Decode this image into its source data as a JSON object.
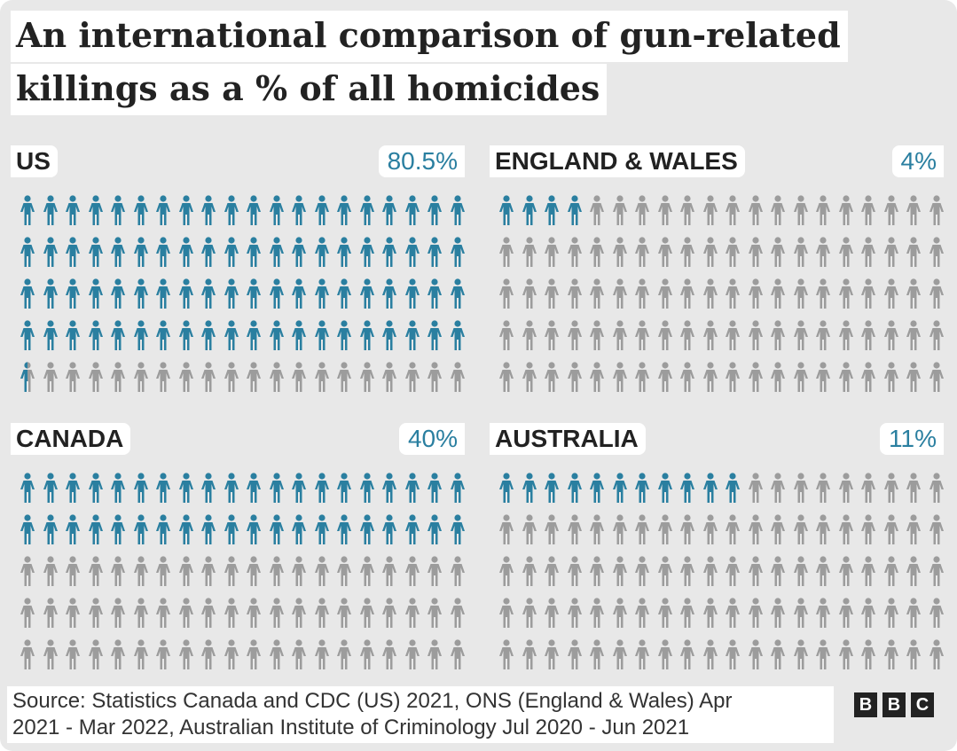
{
  "colors": {
    "highlight": "#2a7fa0",
    "rest": "#9c9c9c",
    "background": "#e8e8e8"
  },
  "icon": "person-icon",
  "title": {
    "line1": "An international comparison of gun-related",
    "line2": "killings as a % of all homicides"
  },
  "chart_data": {
    "type": "pictograph",
    "title": "An international comparison of gun-related killings as a % of all homicides",
    "icons_per_panel": 100,
    "grid": {
      "rows": 5,
      "columns": 20
    },
    "series": [
      {
        "name": "US",
        "percent_label": "80.5%",
        "value": 80.5
      },
      {
        "name": "ENGLAND & WALES",
        "percent_label": "4%",
        "value": 4
      },
      {
        "name": "CANADA",
        "percent_label": "40%",
        "value": 40
      },
      {
        "name": "AUSTRALIA",
        "percent_label": "11%",
        "value": 11
      }
    ]
  },
  "footer": {
    "line1": "Source: Statistics Canada and CDC (US) 2021, ONS (England & Wales) Apr",
    "line2": "2021 - Mar 2022, Australian Institute of Criminology Jul 2020 - Jun 2021"
  },
  "logo": {
    "letters": [
      "B",
      "B",
      "C"
    ]
  }
}
